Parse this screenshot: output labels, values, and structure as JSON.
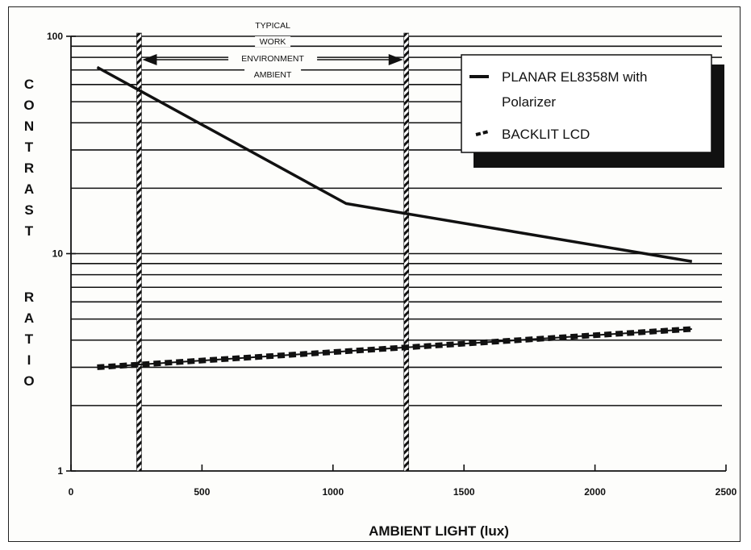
{
  "chart_data": {
    "type": "line",
    "xlabel": "AMBIENT LIGHT (lux)",
    "ylabel": "CONTRAST RATIO",
    "xlim": [
      0,
      2500
    ],
    "ylim": [
      1,
      100
    ],
    "yscale": "log",
    "grid": true,
    "xticks": [
      "0",
      "500",
      "1000",
      "1500",
      "2000",
      "2500"
    ],
    "yticks": [
      "1",
      "10",
      "100"
    ],
    "legend_position": "top-right",
    "series": [
      {
        "name": "PLANAR EL8358M with Polarizer",
        "color": "#111111",
        "style": "solid",
        "x": [
          100,
          1050,
          2370
        ],
        "y": [
          72,
          17,
          9.2
        ]
      },
      {
        "name": "BACKLIT LCD",
        "color": "#111111",
        "style": "hatched",
        "x": [
          100,
          2370
        ],
        "y": [
          3.0,
          4.5
        ]
      }
    ],
    "annotations": {
      "region": {
        "label_lines": [
          "TYPICAL",
          "WORK",
          "ENVIRONMENT",
          "AMBIENT"
        ],
        "x_range": [
          260,
          1280
        ]
      }
    }
  }
}
